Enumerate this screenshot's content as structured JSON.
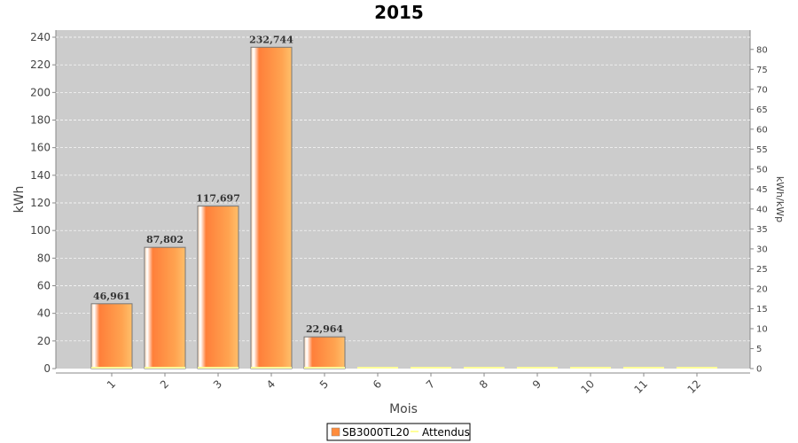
{
  "chart_data": {
    "type": "bar",
    "title": "2015",
    "xlabel": "Mois",
    "ylabel": "kWh",
    "y2label": "kWh/kWp",
    "categories": [
      "1",
      "2",
      "3",
      "4",
      "5",
      "6",
      "7",
      "8",
      "9",
      "10",
      "11",
      "12"
    ],
    "series": [
      {
        "name": "SB3000TL20",
        "type": "bar",
        "values": [
          46.961,
          87.802,
          117.697,
          232.744,
          22.964,
          0,
          0,
          0,
          0,
          0,
          0,
          0
        ],
        "labels": [
          "46,961",
          "87,802",
          "117,697",
          "232,744",
          "22,964",
          "",
          "",
          "",
          "",
          "",
          "",
          ""
        ],
        "color": "#ff8c3c"
      },
      {
        "name": "Attendus",
        "type": "line",
        "values": [
          0,
          0,
          0,
          0,
          0,
          0,
          0,
          0,
          0,
          0,
          0,
          0
        ],
        "color": "#ffff99"
      }
    ],
    "ylim": [
      0,
      240
    ],
    "yticks": [
      0,
      20,
      40,
      60,
      80,
      100,
      120,
      140,
      160,
      180,
      200,
      220,
      240
    ],
    "y2lim": [
      0,
      83.5
    ],
    "y2ticks": [
      0,
      5,
      10,
      15,
      20,
      25,
      30,
      35,
      40,
      45,
      50,
      55,
      60,
      65,
      70,
      75,
      80
    ],
    "grid": true,
    "legend_position": "bottom",
    "plot_background": "#cccccc"
  }
}
